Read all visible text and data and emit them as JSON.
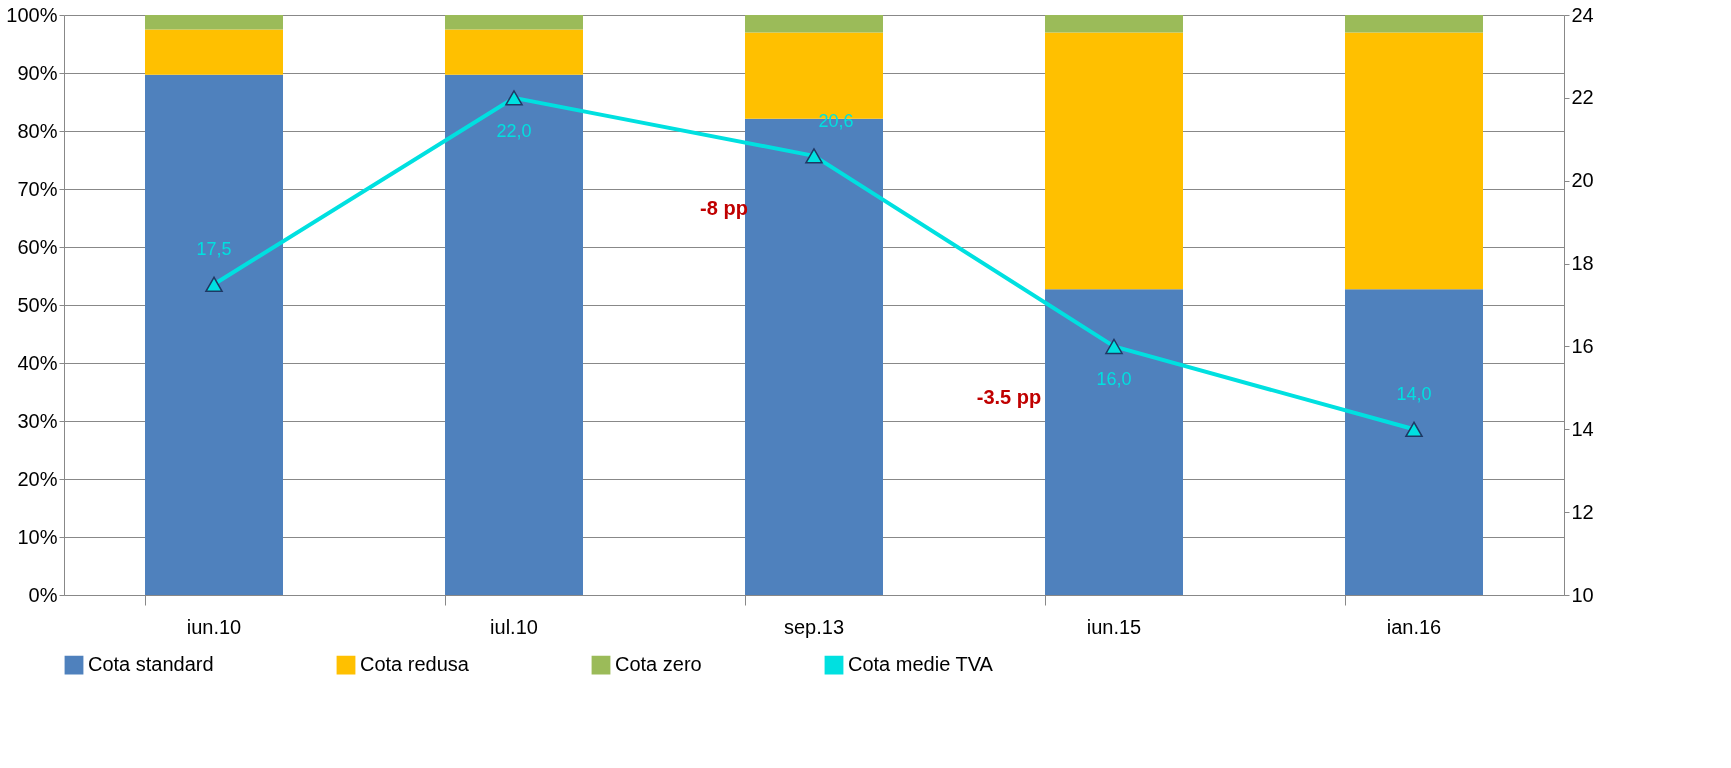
{
  "chart_data": {
    "type": "bar",
    "stacked": true,
    "categories": [
      "iun.10",
      "iul.10",
      "sep.13",
      "iun.15",
      "ian.16"
    ],
    "series": [
      {
        "name": "Cota standard",
        "color": "#4f81bd",
        "values": [
          89.7,
          89.7,
          82.1,
          52.7,
          52.7
        ]
      },
      {
        "name": "Cota redusa",
        "color": "#ffc000",
        "values": [
          7.8,
          7.8,
          14.9,
          44.3,
          44.3
        ]
      },
      {
        "name": "Cota zero",
        "color": "#9bbb59",
        "values": [
          2.5,
          2.5,
          3.0,
          3.0,
          3.0
        ]
      },
      {
        "name": "Cota medie TVA",
        "color": "#00e0e0",
        "type": "line",
        "axis": "y2",
        "marker": "triangle",
        "values": [
          17.5,
          22.0,
          20.6,
          16.0,
          14.0
        ],
        "value_labels": [
          "17,5",
          "22,0",
          "20,6",
          "16,0",
          "14,0"
        ]
      }
    ],
    "ylim": [
      0,
      100
    ],
    "yticks": [
      {
        "value": 0,
        "label": "0%"
      },
      {
        "value": 10,
        "label": "10%"
      },
      {
        "value": 20,
        "label": "20%"
      },
      {
        "value": 30,
        "label": "30%"
      },
      {
        "value": 40,
        "label": "40%"
      },
      {
        "value": 50,
        "label": "50%"
      },
      {
        "value": 60,
        "label": "60%"
      },
      {
        "value": 70,
        "label": "70%"
      },
      {
        "value": 80,
        "label": "80%"
      },
      {
        "value": 90,
        "label": "90%"
      },
      {
        "value": 100,
        "label": "100%"
      }
    ],
    "y2lim": [
      10,
      24
    ],
    "y2ticks": [
      10,
      12,
      14,
      16,
      18,
      20,
      22,
      24
    ],
    "grid": "y",
    "legend": "bottom",
    "annotations": [
      "-8 pp",
      "-3.5 pp"
    ]
  }
}
